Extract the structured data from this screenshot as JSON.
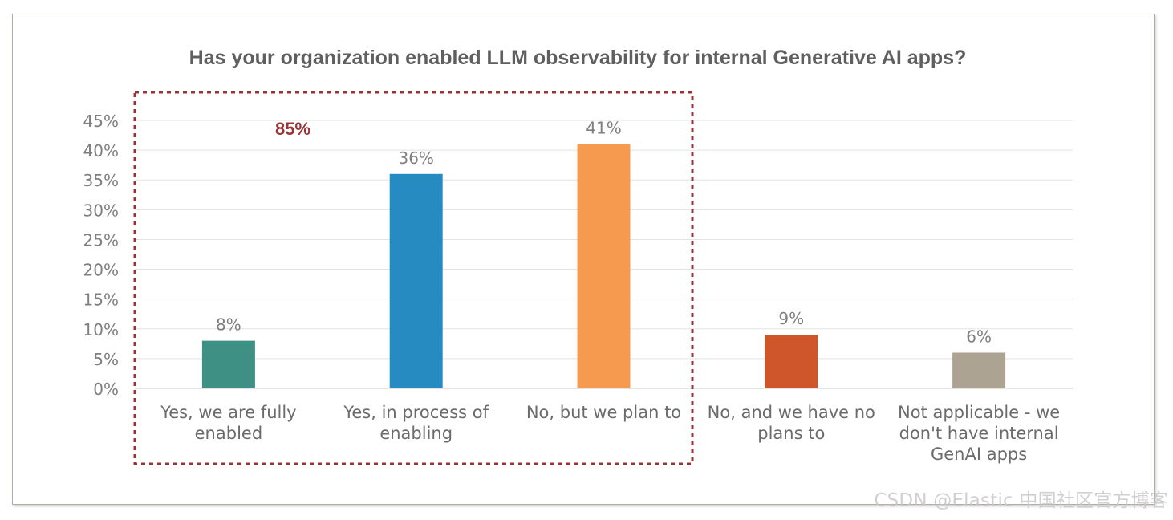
{
  "chart_data": {
    "type": "bar",
    "title": "Has your organization enabled LLM observability for internal Generative AI apps?",
    "xlabel": "",
    "ylabel": "",
    "ylim": [
      0,
      45
    ],
    "yticks": [
      "0%",
      "5%",
      "10%",
      "15%",
      "20%",
      "25%",
      "30%",
      "35%",
      "40%",
      "45%"
    ],
    "grid": true,
    "categories": [
      [
        "Yes, we are fully",
        "enabled"
      ],
      [
        "Yes, in process of",
        "enabling"
      ],
      [
        "No, but we plan to"
      ],
      [
        "No, and we have no",
        "plans to"
      ],
      [
        "Not applicable - we",
        "don't have internal",
        "GenAI apps"
      ]
    ],
    "values": [
      8,
      36,
      41,
      9,
      6
    ],
    "value_labels": [
      "8%",
      "36%",
      "41%",
      "9%",
      "6%"
    ],
    "colors": [
      "#3e8f84",
      "#258bc1",
      "#f59a4f",
      "#cf552b",
      "#ada393"
    ],
    "annotation": {
      "text": "85%",
      "color": "#9b3334",
      "spans_categories": [
        0,
        1,
        2
      ]
    }
  },
  "watermark": "CSDN @Elastic 中国社区官方博客"
}
